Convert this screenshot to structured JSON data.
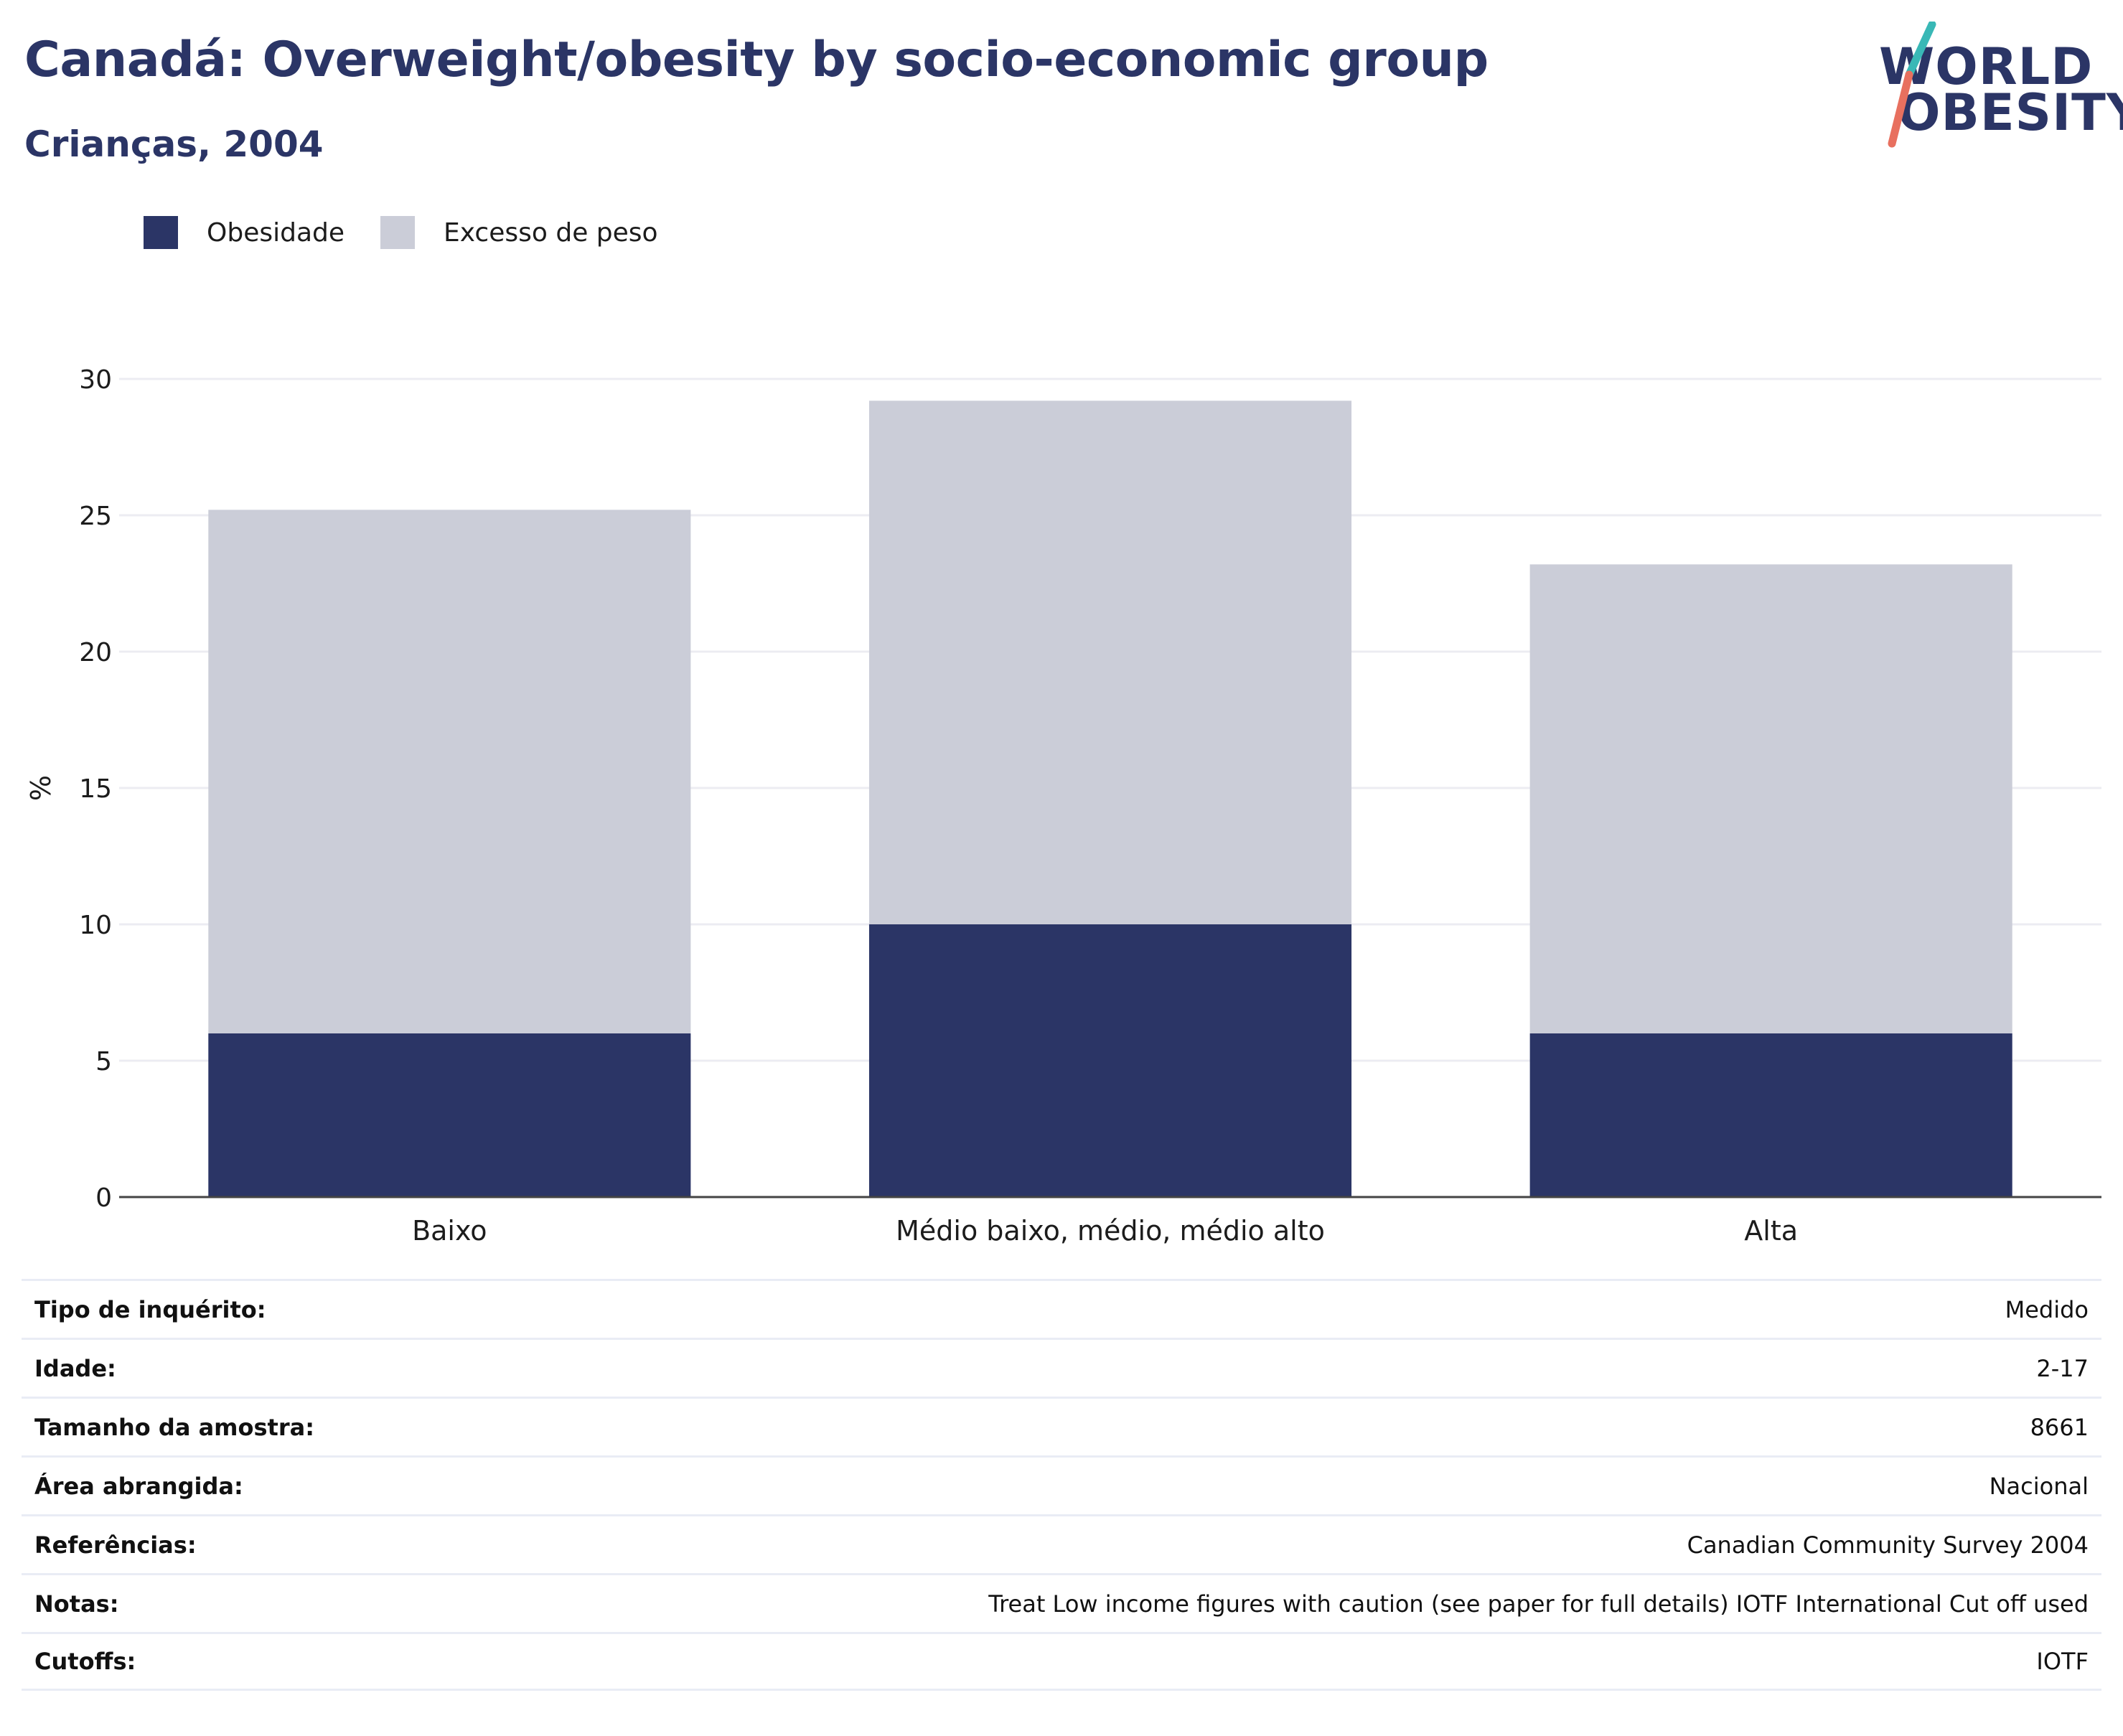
{
  "header": {
    "title": "Canadá: Overweight/obesity by socio-economic group",
    "subtitle": "Crianças, 2004"
  },
  "logo": {
    "line1": "WORLD",
    "line2": "OBESITY",
    "accent_colors": [
      "#39b8b6",
      "#e8705f"
    ]
  },
  "colors": {
    "obesity": "#2b3566",
    "overweight": "#cbcdd8",
    "grid": "#ececf2",
    "axis": "#444444"
  },
  "chart_data": {
    "type": "bar",
    "stacked": true,
    "categories": [
      "Baixo",
      "Médio baixo, médio, médio alto",
      "Alta"
    ],
    "series": [
      {
        "name": "Obesidade",
        "values": [
          6,
          10,
          6
        ]
      },
      {
        "name": "Excesso de peso",
        "values": [
          19.2,
          19.2,
          17.2
        ]
      }
    ],
    "ylabel": "%",
    "ylim": [
      0,
      30
    ],
    "yticks": [
      0,
      5,
      10,
      15,
      20,
      25,
      30
    ],
    "grid": true,
    "legend_position": "top-left"
  },
  "info_table": [
    {
      "label": "Tipo de inquérito:",
      "value": "Medido"
    },
    {
      "label": "Idade:",
      "value": "2-17"
    },
    {
      "label": "Tamanho da amostra:",
      "value": "8661"
    },
    {
      "label": "Área abrangida:",
      "value": "Nacional"
    },
    {
      "label": "Referências:",
      "value": "Canadian Community Survey 2004"
    },
    {
      "label": "Notas:",
      "value": "Treat Low income figures with caution (see paper for full details) IOTF International Cut off used"
    },
    {
      "label": "Cutoffs:",
      "value": "IOTF"
    }
  ]
}
